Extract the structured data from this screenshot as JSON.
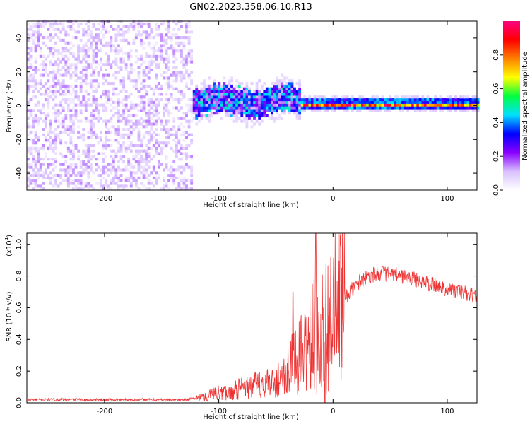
{
  "title": "GN02.2023.358.06.10.R13",
  "chart_data": [
    {
      "type": "heatmap",
      "panel": "spectrogram",
      "xlabel": "Height of straight line (km)",
      "ylabel": "Frequency (Hz)",
      "xlim": [
        -268,
        126
      ],
      "ylim": [
        -50,
        50
      ],
      "xticks": [
        -200,
        -100,
        0,
        100
      ],
      "yticks": [
        -40,
        -20,
        0,
        20,
        40
      ],
      "colorbar": {
        "label": "Normalized spectral amplitude",
        "range": [
          0.0,
          1.0
        ],
        "ticks": [
          0.0,
          0.2,
          0.4,
          0.6,
          0.8
        ],
        "colormap": [
          "#ffffff",
          "#d8bfff",
          "#8800ff",
          "#0000ff",
          "#00e0ff",
          "#00ff40",
          "#ffff00",
          "#ff8000",
          "#ff0000",
          "#ff0080"
        ]
      },
      "regions": [
        {
          "x_range": [
            -268,
            -125
          ],
          "freq_range": [
            -50,
            50
          ],
          "amplitude_range": [
            0.0,
            0.15
          ],
          "description": "noise"
        },
        {
          "x_range": [
            -128,
            -30
          ],
          "freq_center": 2,
          "freq_halfwidth": 10,
          "amplitude_range": [
            0.1,
            0.5
          ]
        },
        {
          "x_range": [
            -30,
            126
          ],
          "freq_center": 0,
          "freq_halfwidth": 3,
          "amplitude_range": [
            0.6,
            1.0
          ]
        }
      ]
    },
    {
      "type": "line",
      "panel": "snr",
      "xlabel": "Height of straight line (km)",
      "ylabel": "SNR (10 * v/v)",
      "yscale_label": "(x10",
      "yscale_exp": "4",
      "multiplier": 10000,
      "xlim": [
        -268,
        126
      ],
      "ylim": [
        0,
        1.07
      ],
      "xticks": [
        -200,
        -100,
        0,
        100
      ],
      "yticks": [
        0.0,
        0.2,
        0.4,
        0.6,
        0.8,
        1.0
      ],
      "color": "#ee3333",
      "series": [
        {
          "x": [
            -268,
            -240,
            -200,
            -160,
            -130,
            -120,
            -110,
            -100,
            -90,
            -80,
            -70,
            -60,
            -50,
            -40,
            -35,
            -30,
            -25,
            -20,
            -18,
            -15,
            -10,
            -5,
            0,
            5,
            10,
            15,
            20,
            25,
            30,
            40,
            50,
            60,
            70,
            80,
            90,
            100,
            110,
            126
          ],
          "values": [
            0.02,
            0.02,
            0.02,
            0.02,
            0.02,
            0.03,
            0.05,
            0.07,
            0.08,
            0.1,
            0.12,
            0.13,
            0.16,
            0.2,
            0.24,
            0.28,
            0.32,
            0.38,
            0.42,
            0.4,
            0.45,
            0.5,
            0.55,
            0.62,
            0.66,
            0.7,
            0.74,
            0.78,
            0.8,
            0.82,
            0.81,
            0.8,
            0.78,
            0.76,
            0.74,
            0.72,
            0.7,
            0.67
          ]
        }
      ],
      "spikes": [
        {
          "x": -15,
          "value": 1.07
        },
        {
          "x": -7,
          "value": 0.0
        },
        {
          "x": -35,
          "value": 0.7
        }
      ]
    }
  ]
}
